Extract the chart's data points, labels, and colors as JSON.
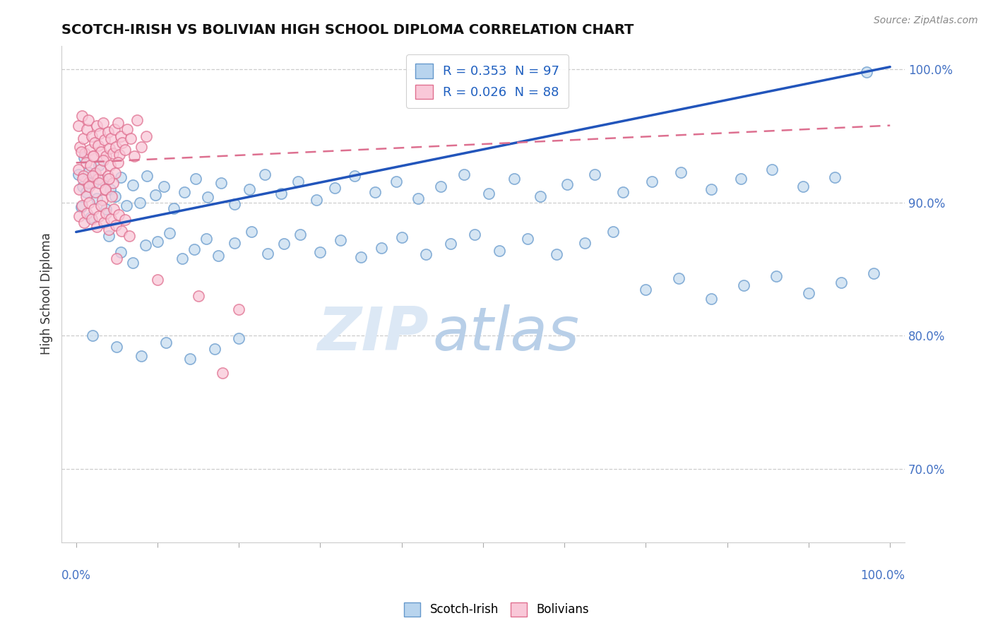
{
  "title": "SCOTCH-IRISH VS BOLIVIAN HIGH SCHOOL DIPLOMA CORRELATION CHART",
  "source": "Source: ZipAtlas.com",
  "ylabel": "High School Diploma",
  "legend_entries": [
    {
      "label": "R = 0.353  N = 97",
      "facecolor": "#b8d4ee",
      "edgecolor": "#6699cc"
    },
    {
      "label": "R = 0.026  N = 88",
      "facecolor": "#f9c8d8",
      "edgecolor": "#e07090"
    }
  ],
  "scotch_irish_facecolor": "#c8ddf0",
  "scotch_irish_edgecolor": "#6699cc",
  "bolivian_facecolor": "#f9c8d8",
  "bolivian_edgecolor": "#e07090",
  "trend_scotch_color": "#2255bb",
  "trend_bolivian_color": "#dd7090",
  "watermark_zip": "ZIP",
  "watermark_atlas": "atlas",
  "ytick_labels": [
    "70.0%",
    "80.0%",
    "90.0%",
    "100.0%"
  ],
  "ytick_vals": [
    0.7,
    0.8,
    0.9,
    1.0
  ],
  "ylim": [
    0.645,
    1.018
  ],
  "xlim": [
    -0.018,
    1.018
  ],
  "si_trend_x0": 0.0,
  "si_trend_y0": 0.878,
  "si_trend_x1": 1.0,
  "si_trend_y1": 1.002,
  "bol_trend_x0": 0.0,
  "bol_trend_y0": 0.93,
  "bol_trend_x1": 1.0,
  "bol_trend_y1": 0.958,
  "scotch_irish_x": [
    0.003,
    0.006,
    0.008,
    0.01,
    0.012,
    0.015,
    0.018,
    0.021,
    0.025,
    0.028,
    0.032,
    0.037,
    0.042,
    0.048,
    0.055,
    0.062,
    0.07,
    0.078,
    0.087,
    0.097,
    0.108,
    0.12,
    0.133,
    0.147,
    0.162,
    0.178,
    0.195,
    0.213,
    0.232,
    0.252,
    0.273,
    0.295,
    0.318,
    0.342,
    0.367,
    0.393,
    0.42,
    0.448,
    0.477,
    0.507,
    0.538,
    0.57,
    0.603,
    0.637,
    0.672,
    0.707,
    0.743,
    0.78,
    0.817,
    0.855,
    0.893,
    0.932,
    0.971,
    0.04,
    0.055,
    0.07,
    0.085,
    0.1,
    0.115,
    0.13,
    0.145,
    0.16,
    0.175,
    0.195,
    0.215,
    0.235,
    0.255,
    0.275,
    0.3,
    0.325,
    0.35,
    0.375,
    0.4,
    0.43,
    0.46,
    0.49,
    0.52,
    0.555,
    0.59,
    0.625,
    0.66,
    0.7,
    0.74,
    0.78,
    0.82,
    0.86,
    0.9,
    0.94,
    0.98,
    0.02,
    0.05,
    0.08,
    0.11,
    0.14,
    0.17,
    0.2
  ],
  "scotch_irish_y": [
    0.921,
    0.897,
    0.912,
    0.934,
    0.908,
    0.923,
    0.889,
    0.915,
    0.903,
    0.928,
    0.917,
    0.895,
    0.91,
    0.905,
    0.919,
    0.898,
    0.913,
    0.9,
    0.92,
    0.906,
    0.912,
    0.896,
    0.908,
    0.918,
    0.904,
    0.915,
    0.899,
    0.91,
    0.921,
    0.907,
    0.916,
    0.902,
    0.911,
    0.92,
    0.908,
    0.916,
    0.903,
    0.912,
    0.921,
    0.907,
    0.918,
    0.905,
    0.914,
    0.921,
    0.908,
    0.916,
    0.923,
    0.91,
    0.918,
    0.925,
    0.912,
    0.919,
    0.998,
    0.875,
    0.863,
    0.855,
    0.868,
    0.871,
    0.877,
    0.858,
    0.865,
    0.873,
    0.86,
    0.87,
    0.878,
    0.862,
    0.869,
    0.876,
    0.863,
    0.872,
    0.859,
    0.866,
    0.874,
    0.861,
    0.869,
    0.876,
    0.864,
    0.873,
    0.861,
    0.87,
    0.878,
    0.835,
    0.843,
    0.828,
    0.838,
    0.845,
    0.832,
    0.84,
    0.847,
    0.8,
    0.792,
    0.785,
    0.795,
    0.783,
    0.79,
    0.798
  ],
  "bolivian_x": [
    0.003,
    0.005,
    0.007,
    0.009,
    0.011,
    0.013,
    0.015,
    0.017,
    0.019,
    0.021,
    0.023,
    0.025,
    0.027,
    0.029,
    0.031,
    0.033,
    0.035,
    0.037,
    0.039,
    0.041,
    0.043,
    0.045,
    0.047,
    0.049,
    0.051,
    0.053,
    0.055,
    0.057,
    0.06,
    0.063,
    0.067,
    0.071,
    0.075,
    0.08,
    0.086,
    0.003,
    0.006,
    0.009,
    0.012,
    0.015,
    0.018,
    0.021,
    0.024,
    0.027,
    0.03,
    0.033,
    0.036,
    0.039,
    0.042,
    0.045,
    0.048,
    0.051,
    0.004,
    0.008,
    0.012,
    0.016,
    0.02,
    0.024,
    0.028,
    0.032,
    0.036,
    0.04,
    0.044,
    0.004,
    0.007,
    0.01,
    0.013,
    0.016,
    0.019,
    0.022,
    0.025,
    0.028,
    0.031,
    0.034,
    0.037,
    0.04,
    0.043,
    0.046,
    0.049,
    0.052,
    0.056,
    0.06,
    0.065,
    0.05,
    0.1,
    0.15,
    0.2,
    0.18
  ],
  "bolivian_y": [
    0.958,
    0.942,
    0.965,
    0.948,
    0.937,
    0.955,
    0.962,
    0.94,
    0.95,
    0.935,
    0.945,
    0.958,
    0.943,
    0.952,
    0.938,
    0.96,
    0.947,
    0.935,
    0.953,
    0.941,
    0.948,
    0.937,
    0.955,
    0.942,
    0.96,
    0.936,
    0.95,
    0.945,
    0.94,
    0.955,
    0.948,
    0.935,
    0.962,
    0.942,
    0.95,
    0.925,
    0.938,
    0.92,
    0.93,
    0.915,
    0.928,
    0.935,
    0.922,
    0.918,
    0.925,
    0.932,
    0.91,
    0.92,
    0.928,
    0.915,
    0.922,
    0.93,
    0.91,
    0.918,
    0.905,
    0.912,
    0.92,
    0.908,
    0.915,
    0.902,
    0.91,
    0.918,
    0.905,
    0.89,
    0.898,
    0.885,
    0.892,
    0.9,
    0.888,
    0.895,
    0.882,
    0.89,
    0.898,
    0.885,
    0.892,
    0.88,
    0.888,
    0.895,
    0.883,
    0.891,
    0.879,
    0.887,
    0.875,
    0.858,
    0.842,
    0.83,
    0.82,
    0.772
  ]
}
